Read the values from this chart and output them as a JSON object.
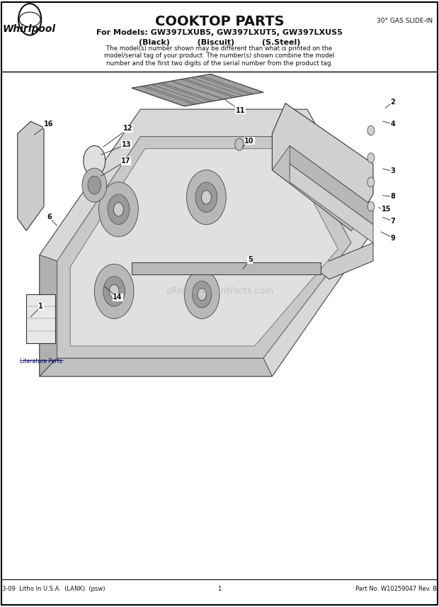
{
  "title": "COOKTOP PARTS",
  "subtitle_line1": "For Models: GW397LXUB5, GW397LXUT5, GW397LXUS5",
  "subtitle_line2": "(Black)          (Biscuit)          (S.Steel)",
  "top_right": "30° GAS SLIDE-IN",
  "disclaimer": "The model(s) number shown may be different than what is printed on the\nmodel/serial tag of your product. The number(s) shown combine the model\nnumber and the first two digits of the serial number from the product tag.",
  "footer_left": "3-09  Litho In U.S.A.  (LANK)  (psw)",
  "footer_center": "1",
  "footer_right": "Part No. W10259047 Rev. B",
  "literature_parts": "Literature Parts",
  "watermark": "eReplacementParts.com",
  "bg_color": "#ffffff",
  "part_positions": {
    "1": [
      0.093,
      0.495,
      0.07,
      0.478
    ],
    "2": [
      0.895,
      0.832,
      0.878,
      0.822
    ],
    "3": [
      0.895,
      0.718,
      0.872,
      0.722
    ],
    "4": [
      0.895,
      0.796,
      0.872,
      0.8
    ],
    "5": [
      0.57,
      0.572,
      0.553,
      0.557
    ],
    "6": [
      0.112,
      0.642,
      0.13,
      0.628
    ],
    "7": [
      0.895,
      0.636,
      0.872,
      0.642
    ],
    "8": [
      0.895,
      0.676,
      0.872,
      0.678
    ],
    "9": [
      0.895,
      0.608,
      0.868,
      0.618
    ],
    "10": [
      0.568,
      0.768,
      0.552,
      0.758
    ],
    "11": [
      0.548,
      0.818,
      0.512,
      0.836
    ],
    "12": [
      0.292,
      0.788,
      0.235,
      0.758
    ],
    "13": [
      0.288,
      0.762,
      0.23,
      0.745
    ],
    "14": [
      0.268,
      0.51,
      0.238,
      0.528
    ],
    "15": [
      0.88,
      0.655,
      0.862,
      0.658
    ],
    "16": [
      0.11,
      0.795,
      0.078,
      0.778
    ],
    "17": [
      0.287,
      0.735,
      0.23,
      0.71
    ]
  }
}
